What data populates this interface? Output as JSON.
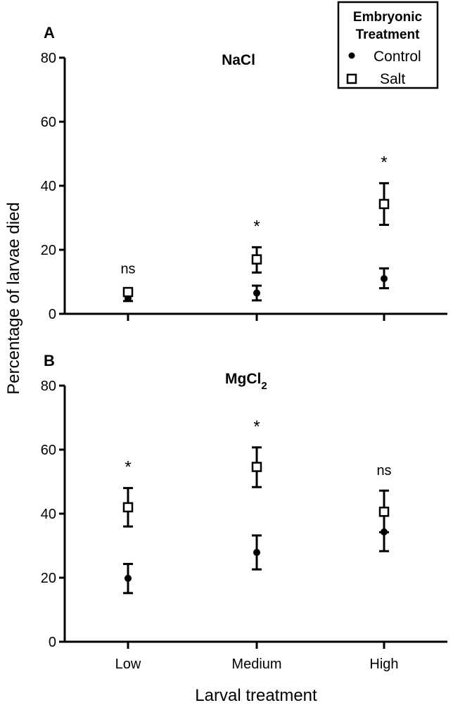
{
  "chart_data": [
    {
      "type": "scatter",
      "panel_label": "A",
      "title": "NaCl",
      "categories": [
        "Low",
        "Medium",
        "High"
      ],
      "ylim": [
        0,
        80
      ],
      "yticks": [
        "0",
        "20",
        "40",
        "60",
        "80"
      ],
      "grid": false,
      "series": [
        {
          "name": "Control",
          "marker": "filled-circle",
          "values": [
            4.8,
            6.5,
            11.0
          ],
          "err_low": [
            4.0,
            4.2,
            8.0
          ],
          "err_high": [
            5.6,
            8.8,
            14.2
          ]
        },
        {
          "name": "Salt",
          "marker": "open-square",
          "values": [
            6.8,
            17.0,
            34.3
          ],
          "err_low": [
            5.8,
            12.9,
            27.8
          ],
          "err_high": [
            7.8,
            20.8,
            40.8
          ]
        }
      ],
      "annotations": [
        "ns",
        "*",
        "*"
      ]
    },
    {
      "type": "scatter",
      "panel_label": "B",
      "title": "MgCl",
      "title_subscript": "2",
      "categories": [
        "Low",
        "Medium",
        "High"
      ],
      "ylim": [
        0,
        80
      ],
      "yticks": [
        "0",
        "20",
        "40",
        "60",
        "80"
      ],
      "grid": false,
      "series": [
        {
          "name": "Control",
          "marker": "filled-circle",
          "values": [
            19.8,
            27.9,
            34.3
          ],
          "err_low": [
            15.2,
            22.6,
            28.3
          ],
          "err_high": [
            24.3,
            33.2,
            40.1
          ]
        },
        {
          "name": "Salt",
          "marker": "open-square",
          "values": [
            42.0,
            54.6,
            40.6
          ],
          "err_low": [
            36.0,
            48.3,
            34.2
          ],
          "err_high": [
            48.0,
            60.7,
            47.2
          ]
        }
      ],
      "annotations": [
        "*",
        "*",
        "ns"
      ]
    }
  ],
  "ylabel": "Percentage of larvae died",
  "xlabel": "Larval treatment",
  "legend": {
    "title_line1": "Embryonic",
    "title_line2": "Treatment",
    "placement": "top-right",
    "items": [
      "Control",
      "Salt"
    ]
  }
}
